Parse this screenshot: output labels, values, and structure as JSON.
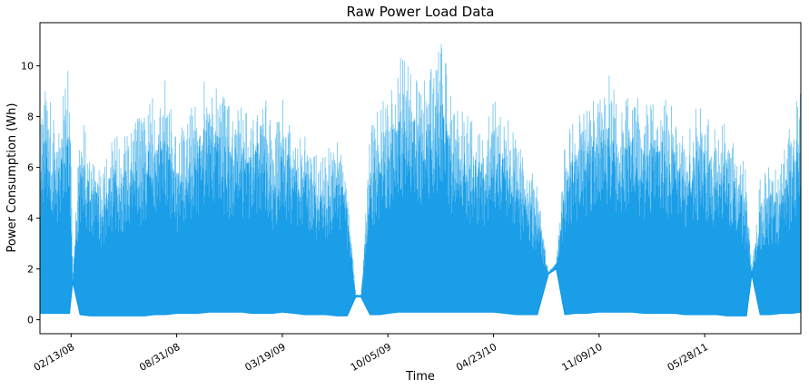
{
  "chart_data": {
    "type": "line",
    "title": "Raw Power Load Data",
    "xlabel": "Time",
    "ylabel": "Power Consumption (Wh)",
    "ylim": [
      -0.55,
      11.7
    ],
    "xlim": [
      "2007-12-16",
      "2011-11-26"
    ],
    "grid": false,
    "legend": "none",
    "x_ticks": [
      {
        "date": "2008-02-13",
        "label": "02/13/08"
      },
      {
        "date": "2008-08-31",
        "label": "08/31/08"
      },
      {
        "date": "2009-03-19",
        "label": "03/19/09"
      },
      {
        "date": "2009-10-05",
        "label": "10/05/09"
      },
      {
        "date": "2010-04-23",
        "label": "04/23/10"
      },
      {
        "date": "2010-11-09",
        "label": "11/09/10"
      },
      {
        "date": "2011-05-28",
        "label": "05/28/11"
      }
    ],
    "y_ticks": [
      0,
      2,
      4,
      6,
      8,
      10
    ],
    "series": [
      {
        "color": "#0a97e6",
        "fill_color": "#7cc8f0",
        "sampling": "daily envelope",
        "x": [
          "2007-12-16",
          "2008-01-01",
          "2008-01-15",
          "2008-02-01",
          "2008-02-10",
          "2008-02-16",
          "2008-03-01",
          "2008-03-20",
          "2008-04-10",
          "2008-05-01",
          "2008-05-20",
          "2008-06-10",
          "2008-07-01",
          "2008-07-20",
          "2008-08-10",
          "2008-08-31",
          "2008-09-20",
          "2008-10-10",
          "2008-11-01",
          "2008-11-20",
          "2008-12-10",
          "2009-01-01",
          "2009-01-20",
          "2009-02-10",
          "2009-03-01",
          "2009-03-19",
          "2009-04-10",
          "2009-05-01",
          "2009-05-20",
          "2009-06-10",
          "2009-07-01",
          "2009-07-20",
          "2009-08-05",
          "2009-08-15",
          "2009-09-01",
          "2009-09-20",
          "2009-10-05",
          "2009-10-25",
          "2009-11-15",
          "2009-12-05",
          "2009-12-25",
          "2010-01-15",
          "2010-02-05",
          "2010-02-25",
          "2010-03-15",
          "2010-04-05",
          "2010-04-23",
          "2010-05-15",
          "2010-06-05",
          "2010-06-25",
          "2010-07-15",
          "2010-08-05",
          "2010-08-20",
          "2010-09-05",
          "2010-09-25",
          "2010-10-15",
          "2010-11-09",
          "2010-11-30",
          "2010-12-20",
          "2011-01-10",
          "2011-02-01",
          "2011-02-20",
          "2011-03-10",
          "2011-04-01",
          "2011-04-20",
          "2011-05-10",
          "2011-05-28",
          "2011-06-20",
          "2011-07-10",
          "2011-07-30",
          "2011-08-15",
          "2011-08-25",
          "2011-09-10",
          "2011-09-30",
          "2011-10-20",
          "2011-11-10",
          "2011-11-26"
        ],
        "peaks": [
          8.7,
          9.2,
          7.9,
          9.1,
          10.7,
          1.6,
          8.1,
          7.2,
          5.9,
          7.4,
          7.2,
          8.0,
          8.0,
          9.0,
          9.6,
          7.2,
          8.3,
          8.8,
          10.2,
          9.0,
          8.4,
          8.5,
          7.9,
          9.5,
          7.3,
          8.9,
          7.5,
          7.5,
          6.8,
          6.4,
          8.1,
          5.8,
          1.0,
          1.0,
          7.5,
          8.6,
          8.9,
          10.3,
          10.3,
          9.2,
          10.0,
          11.1,
          8.6,
          8.3,
          7.9,
          7.6,
          8.6,
          8.5,
          7.0,
          6.3,
          5.4,
          1.9,
          2.3,
          7.1,
          8.2,
          8.5,
          9.2,
          9.7,
          8.3,
          9.2,
          8.4,
          9.0,
          8.7,
          8.6,
          7.0,
          8.4,
          8.3,
          7.9,
          7.9,
          7.2,
          5.8,
          2.0,
          5.6,
          6.3,
          6.2,
          8.1,
          9.7
        ],
        "bases": [
          0.25,
          0.25,
          0.25,
          0.25,
          0.25,
          1.5,
          0.2,
          0.15,
          0.15,
          0.15,
          0.15,
          0.15,
          0.15,
          0.2,
          0.2,
          0.25,
          0.25,
          0.25,
          0.3,
          0.3,
          0.3,
          0.3,
          0.25,
          0.25,
          0.25,
          0.3,
          0.25,
          0.2,
          0.2,
          0.2,
          0.15,
          0.15,
          0.9,
          0.9,
          0.2,
          0.2,
          0.25,
          0.3,
          0.3,
          0.3,
          0.3,
          0.3,
          0.3,
          0.3,
          0.3,
          0.3,
          0.3,
          0.25,
          0.2,
          0.2,
          0.2,
          1.8,
          2.0,
          0.2,
          0.25,
          0.25,
          0.3,
          0.3,
          0.3,
          0.3,
          0.25,
          0.25,
          0.25,
          0.25,
          0.2,
          0.2,
          0.2,
          0.2,
          0.15,
          0.15,
          0.15,
          1.8,
          0.2,
          0.2,
          0.25,
          0.25,
          0.3
        ]
      }
    ]
  }
}
